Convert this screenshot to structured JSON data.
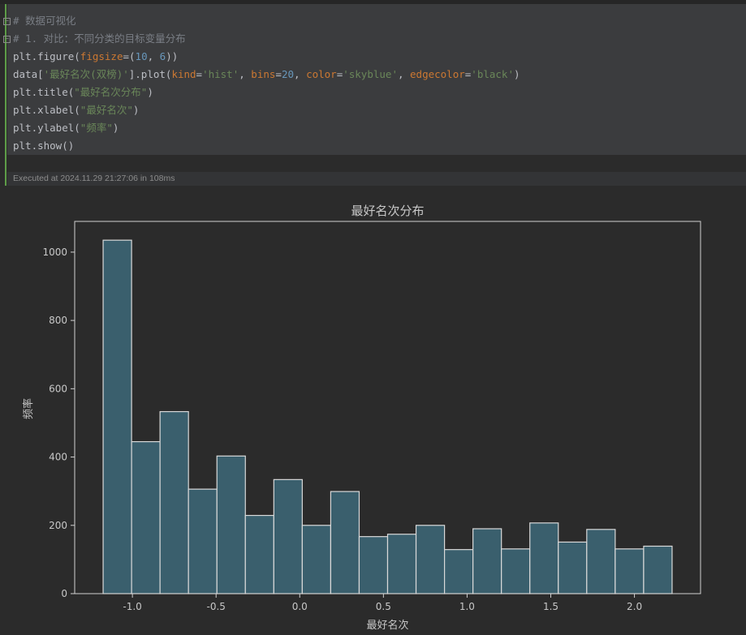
{
  "cell": {
    "code_lines": [
      {
        "tokens": [
          {
            "t": "# 数据可视化",
            "c": "comment"
          }
        ],
        "fold": true
      },
      {
        "tokens": [
          {
            "t": "# 1. 对比：不同分类的目标变量分布",
            "c": "comment"
          }
        ],
        "fold": true
      },
      {
        "tokens": [
          {
            "t": "plt.figure(",
            "c": "plain"
          },
          {
            "t": "figsize",
            "c": "kw"
          },
          {
            "t": "=(",
            "c": "plain"
          },
          {
            "t": "10",
            "c": "num"
          },
          {
            "t": ", ",
            "c": "plain"
          },
          {
            "t": "6",
            "c": "num"
          },
          {
            "t": "))",
            "c": "plain"
          }
        ]
      },
      {
        "tokens": [
          {
            "t": "data[",
            "c": "plain"
          },
          {
            "t": "'最好名次(双榜)'",
            "c": "str"
          },
          {
            "t": "].plot(",
            "c": "plain"
          },
          {
            "t": "kind",
            "c": "kw"
          },
          {
            "t": "=",
            "c": "plain"
          },
          {
            "t": "'hist'",
            "c": "str"
          },
          {
            "t": ", ",
            "c": "plain"
          },
          {
            "t": "bins",
            "c": "kw"
          },
          {
            "t": "=",
            "c": "plain"
          },
          {
            "t": "20",
            "c": "num"
          },
          {
            "t": ", ",
            "c": "plain"
          },
          {
            "t": "color",
            "c": "kw"
          },
          {
            "t": "=",
            "c": "plain"
          },
          {
            "t": "'skyblue'",
            "c": "str"
          },
          {
            "t": ", ",
            "c": "plain"
          },
          {
            "t": "edgecolor",
            "c": "kw"
          },
          {
            "t": "=",
            "c": "plain"
          },
          {
            "t": "'black'",
            "c": "str"
          },
          {
            "t": ")",
            "c": "plain"
          }
        ]
      },
      {
        "tokens": [
          {
            "t": "plt.title(",
            "c": "plain"
          },
          {
            "t": "\"最好名次分布\"",
            "c": "str"
          },
          {
            "t": ")",
            "c": "plain"
          }
        ]
      },
      {
        "tokens": [
          {
            "t": "plt.xlabel(",
            "c": "plain"
          },
          {
            "t": "\"最好名次\"",
            "c": "str"
          },
          {
            "t": ")",
            "c": "plain"
          }
        ]
      },
      {
        "tokens": [
          {
            "t": "plt.ylabel(",
            "c": "plain"
          },
          {
            "t": "\"频率\"",
            "c": "str"
          },
          {
            "t": ")",
            "c": "plain"
          }
        ]
      },
      {
        "tokens": [
          {
            "t": "plt.show()",
            "c": "plain"
          }
        ]
      }
    ],
    "execution_status": "Executed at 2024.11.29 21:27:06 in 108ms"
  },
  "chart_data": {
    "type": "bar",
    "title": "最好名次分布",
    "xlabel": "最好名次",
    "ylabel": "频率",
    "bin_edges": [
      -1.175,
      -1.005,
      -0.835,
      -0.665,
      -0.495,
      -0.325,
      -0.155,
      0.015,
      0.185,
      0.355,
      0.525,
      0.695,
      0.865,
      1.035,
      1.205,
      1.375,
      1.545,
      1.715,
      1.885,
      2.055,
      2.225
    ],
    "values": [
      1035,
      445,
      533,
      306,
      403,
      229,
      334,
      200,
      299,
      167,
      174,
      200,
      129,
      190,
      131,
      207,
      151,
      188,
      131,
      139
    ],
    "xlim": [
      -1.345,
      2.395
    ],
    "ylim": [
      0,
      1090
    ],
    "xticks": [
      -1.0,
      -0.5,
      0.0,
      0.5,
      1.0,
      1.5,
      2.0
    ],
    "xtick_labels": [
      "-1.0",
      "-0.5",
      "0.0",
      "0.5",
      "1.0",
      "1.5",
      "2.0"
    ],
    "yticks": [
      0,
      200,
      400,
      600,
      800,
      1000
    ],
    "ytick_labels": [
      "0",
      "200",
      "400",
      "600",
      "800",
      "1000"
    ],
    "bar_color": "#3a5f6d",
    "edge_color": "#d9d9d9",
    "grid": false,
    "legend": "none"
  }
}
